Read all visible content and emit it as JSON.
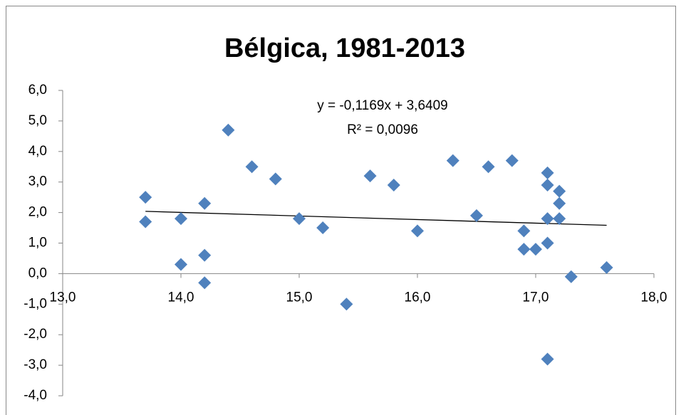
{
  "chart_data": {
    "type": "scatter",
    "title": "Bélgica, 1981-2013",
    "series": [
      {
        "color": "#4f81bd",
        "x": [
          13.7,
          13.7,
          14.0,
          14.0,
          14.2,
          14.2,
          14.2,
          14.4,
          14.6,
          14.8,
          15.0,
          15.2,
          15.4,
          15.6,
          15.8,
          16.0,
          16.3,
          16.5,
          16.6,
          16.8,
          16.9,
          16.9,
          17.0,
          17.1,
          17.1,
          17.1,
          17.1,
          17.1,
          17.2,
          17.2,
          17.2,
          17.3,
          17.6
        ],
        "values": [
          2.5,
          1.7,
          1.8,
          0.3,
          2.3,
          0.6,
          -0.3,
          4.7,
          3.5,
          3.1,
          1.8,
          1.5,
          -1.0,
          3.2,
          2.9,
          1.4,
          3.7,
          1.9,
          3.5,
          3.7,
          1.4,
          0.8,
          0.8,
          3.3,
          2.9,
          1.8,
          1.0,
          -2.8,
          2.7,
          2.3,
          1.8,
          -0.1,
          0.2
        ]
      }
    ],
    "trendline": {
      "equation": "y = -0,1169x + 3,6409",
      "r2": "R² = 0,0096",
      "slope": -0.1169,
      "intercept": 3.6409,
      "x_range": [
        13.7,
        17.6
      ]
    },
    "xlim": [
      13,
      18
    ],
    "xticks": [
      {
        "value": 13,
        "label": "13,0"
      },
      {
        "value": 14,
        "label": "14,0"
      },
      {
        "value": 15,
        "label": "15,0"
      },
      {
        "value": 16,
        "label": "16,0"
      },
      {
        "value": 17,
        "label": "17,0"
      },
      {
        "value": 18,
        "label": "18,0"
      }
    ],
    "ylim": [
      -4,
      6
    ],
    "yticks": [
      {
        "value": 6,
        "label": "6,0"
      },
      {
        "value": 5,
        "label": "5,0"
      },
      {
        "value": 4,
        "label": "4,0"
      },
      {
        "value": 3,
        "label": "3,0"
      },
      {
        "value": 2,
        "label": "2,0"
      },
      {
        "value": 1,
        "label": "1,0"
      },
      {
        "value": 0,
        "label": "0,0"
      },
      {
        "value": -1,
        "label": "-1,0"
      },
      {
        "value": -2,
        "label": "-2,0"
      },
      {
        "value": -3,
        "label": "-3,0"
      },
      {
        "value": -4,
        "label": "-4,0"
      }
    ],
    "grid": false
  }
}
